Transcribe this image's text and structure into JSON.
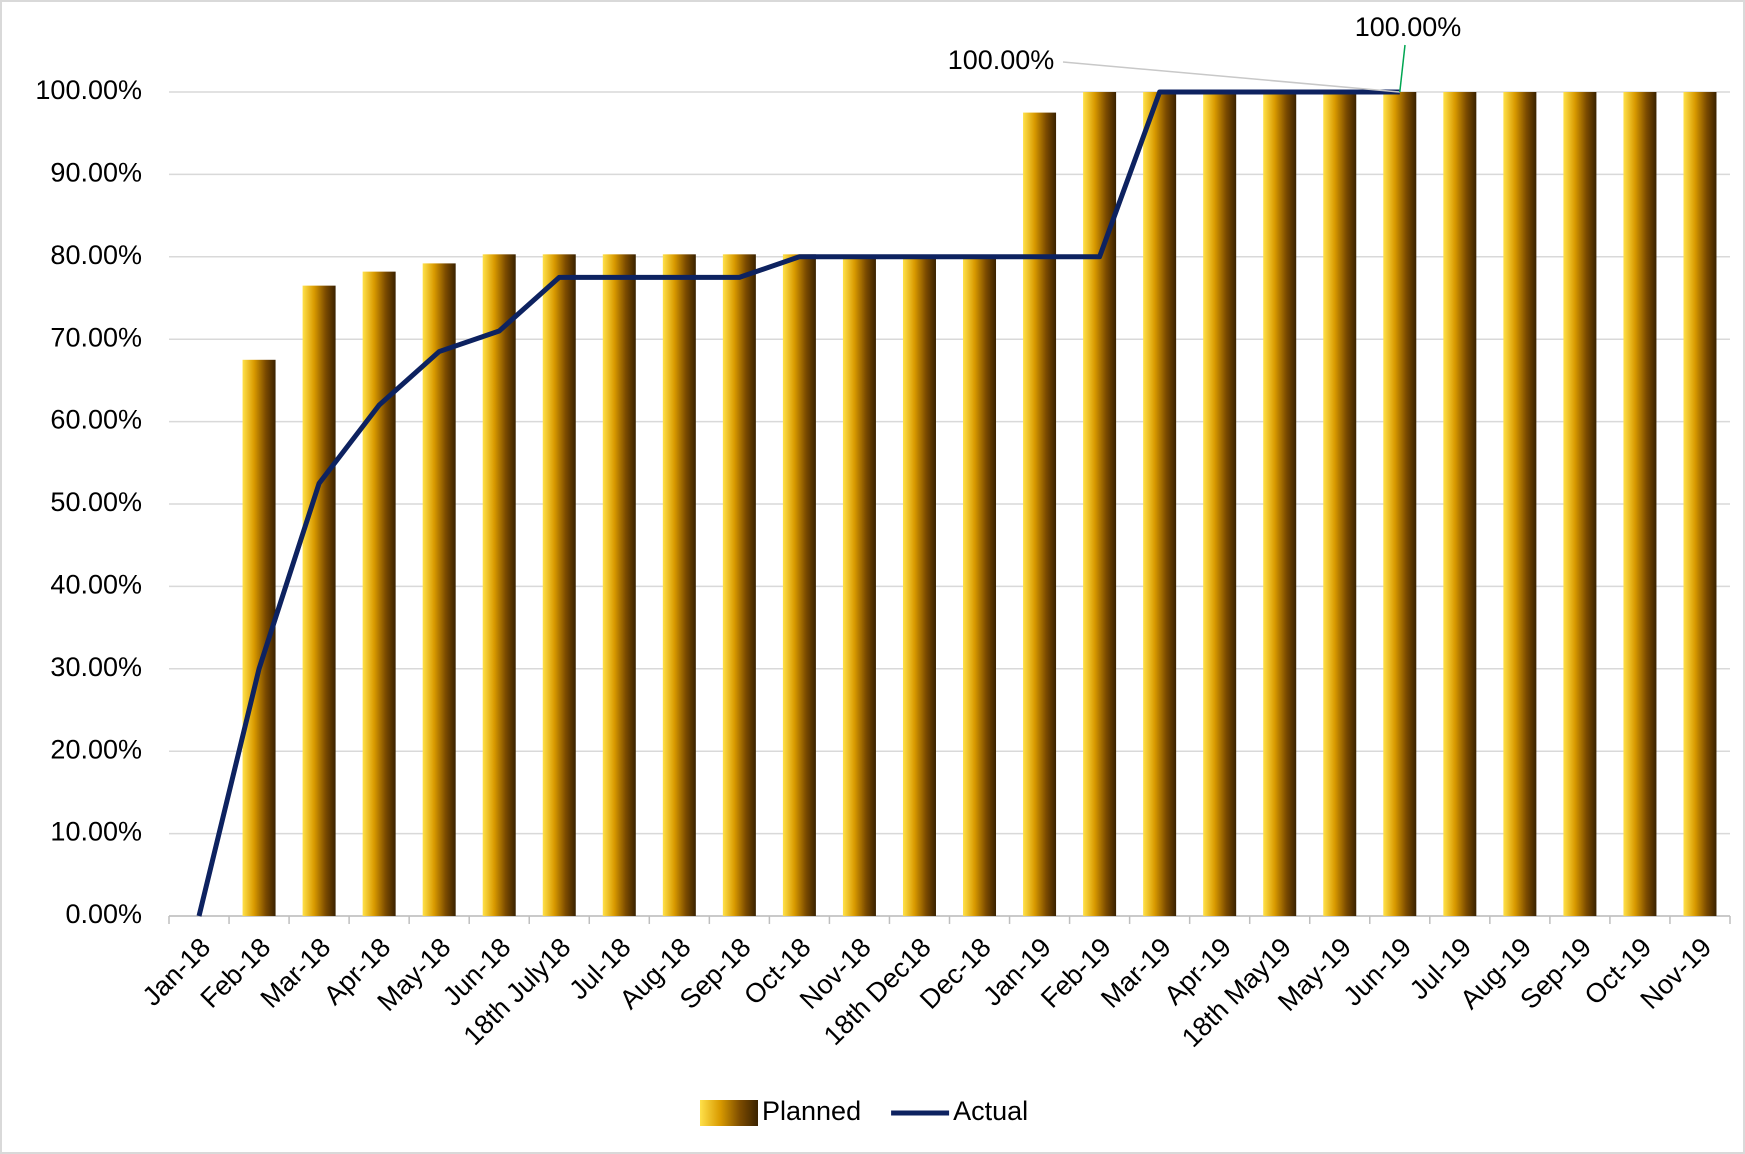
{
  "chart_data": {
    "type": "bar-line",
    "categories": [
      "Jan-18",
      "Feb-18",
      "Mar-18",
      "Apr-18",
      "May-18",
      "Jun-18",
      "18th July18",
      "Jul-18",
      "Aug-18",
      "Sep-18",
      "Oct-18",
      "Nov-18",
      "18th Dec18",
      "Dec-18",
      "Jan-19",
      "Feb-19",
      "Mar-19",
      "Apr-19",
      "18th May19",
      "May-19",
      "Jun-19",
      "Jul-19",
      "Aug-19",
      "Sep-19",
      "Oct-19",
      "Nov-19"
    ],
    "series": [
      {
        "name": "Planned",
        "type": "bar",
        "color": "#d99a00",
        "values": [
          0,
          67.5,
          76.5,
          78.2,
          79.2,
          80.3,
          80.3,
          80.3,
          80.3,
          80.3,
          80.3,
          80,
          80,
          80,
          97.5,
          100,
          100,
          100,
          100,
          100,
          100,
          100,
          100,
          100,
          100,
          100
        ],
        "value_labels": [
          null,
          null,
          null,
          null,
          null,
          null,
          null,
          null,
          null,
          null,
          null,
          null,
          null,
          null,
          null,
          null,
          null,
          null,
          null,
          null,
          "100.00%",
          null,
          null,
          null,
          null,
          null
        ]
      },
      {
        "name": "Actual",
        "type": "line",
        "color": "#0d2260",
        "values": [
          0,
          30,
          52.5,
          62,
          68.5,
          71,
          77.5,
          77.5,
          77.5,
          77.5,
          80,
          80,
          80,
          80,
          80,
          80,
          100,
          100,
          100,
          100,
          100,
          null,
          null,
          null,
          null,
          null
        ],
        "value_labels": [
          null,
          null,
          null,
          null,
          null,
          null,
          null,
          null,
          null,
          null,
          null,
          null,
          null,
          null,
          null,
          null,
          null,
          null,
          null,
          null,
          "100.00%",
          null,
          null,
          null,
          null,
          null
        ]
      }
    ],
    "ylim": [
      0,
      100
    ],
    "yticks": [
      {
        "value": 0,
        "label": "0.00%"
      },
      {
        "value": 10,
        "label": "10.00%"
      },
      {
        "value": 20,
        "label": "20.00%"
      },
      {
        "value": 30,
        "label": "30.00%"
      },
      {
        "value": 40,
        "label": "40.00%"
      },
      {
        "value": 50,
        "label": "50.00%"
      },
      {
        "value": 60,
        "label": "60.00%"
      },
      {
        "value": 70,
        "label": "70.00%"
      },
      {
        "value": 80,
        "label": "80.00%"
      },
      {
        "value": 90,
        "label": "90.00%"
      },
      {
        "value": 100,
        "label": "100.00%"
      }
    ],
    "grid": true,
    "legend": "bottom"
  }
}
